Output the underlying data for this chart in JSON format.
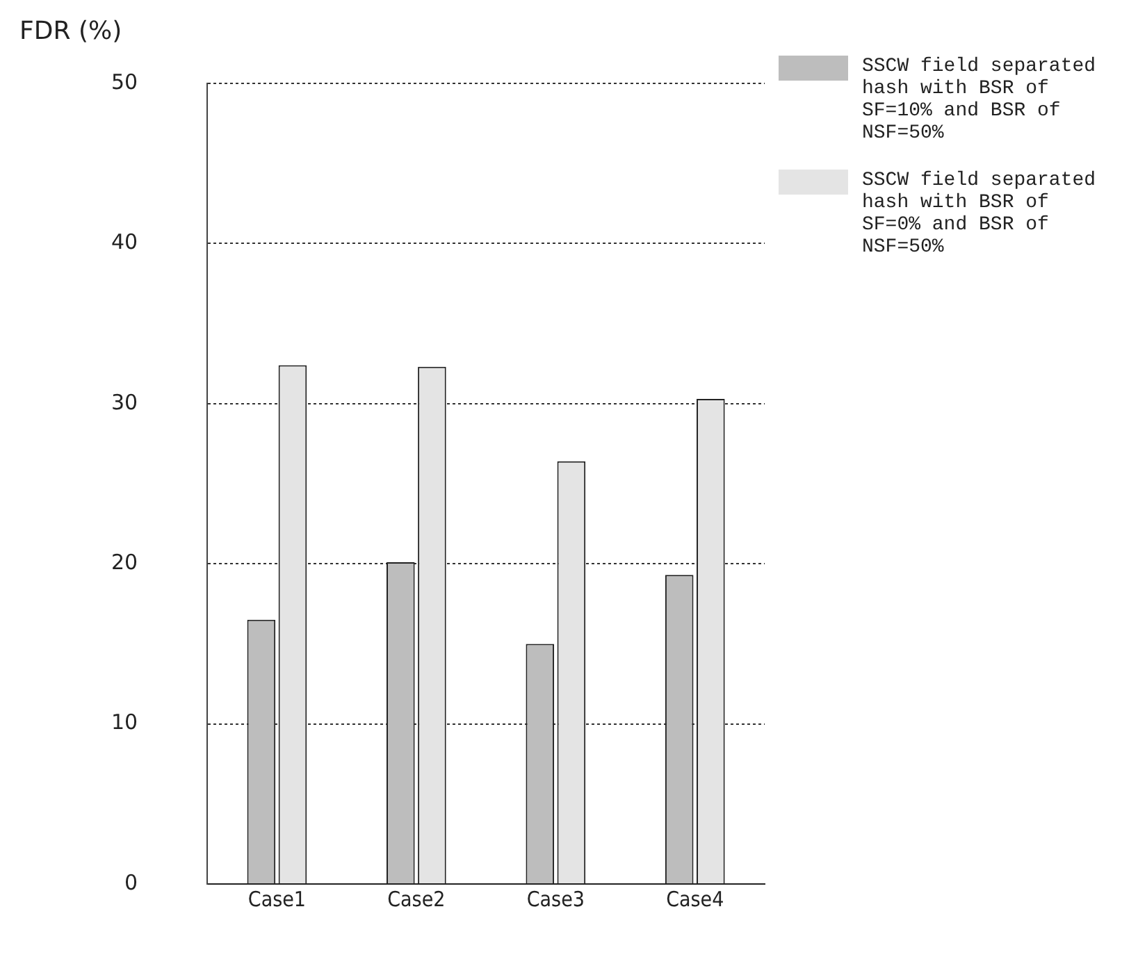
{
  "chart_data": {
    "type": "bar",
    "ylabel": "FDR (%)",
    "categories": [
      "Case1",
      "Case2",
      "Case3",
      "Case4"
    ],
    "series": [
      {
        "name": "SSCW field separated hash with BSR of SF=10% and BSR of NSF=50%",
        "color": "#bdbdbd",
        "values": [
          16.5,
          20.1,
          15.0,
          19.3
        ]
      },
      {
        "name": "SSCW field separated hash with BSR of SF=0% and BSR of NSF=50%",
        "color": "#e4e4e4",
        "values": [
          32.4,
          32.3,
          26.4,
          30.3
        ]
      }
    ],
    "ylim": [
      0,
      50
    ],
    "yticks": [
      0,
      10,
      20,
      30,
      40,
      50
    ],
    "grid": "y",
    "legend": "top right"
  }
}
